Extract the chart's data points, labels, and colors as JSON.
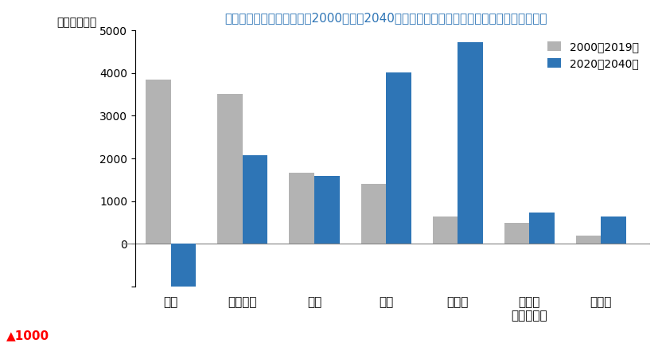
{
  "title": "国家政策シナリオに基づく2000年から2040年にかけての供給源別の世界発電量の変化予想",
  "ylabel": "テラワット時",
  "categories": [
    "石炭",
    "天然ガス",
    "水力",
    "風力",
    "太陽光",
    "バイオ\nエネルギー",
    "原子力"
  ],
  "series1_label": "2000〜2019年",
  "series2_label": "2020〜2040年",
  "series1_values": [
    3850,
    3520,
    1670,
    1400,
    640,
    490,
    200
  ],
  "series2_values": [
    -1150,
    2070,
    1590,
    4020,
    4720,
    730,
    640
  ],
  "color1": "#b3b3b3",
  "color2": "#2e75b6",
  "ylim_min": -1000,
  "ylim_max": 5000,
  "yticks": [
    -1000,
    0,
    1000,
    2000,
    3000,
    4000,
    5000
  ],
  "triangle_label": "▲1000",
  "title_color": "#2e75b6",
  "ylabel_color": "#000000",
  "background_color": "#ffffff"
}
